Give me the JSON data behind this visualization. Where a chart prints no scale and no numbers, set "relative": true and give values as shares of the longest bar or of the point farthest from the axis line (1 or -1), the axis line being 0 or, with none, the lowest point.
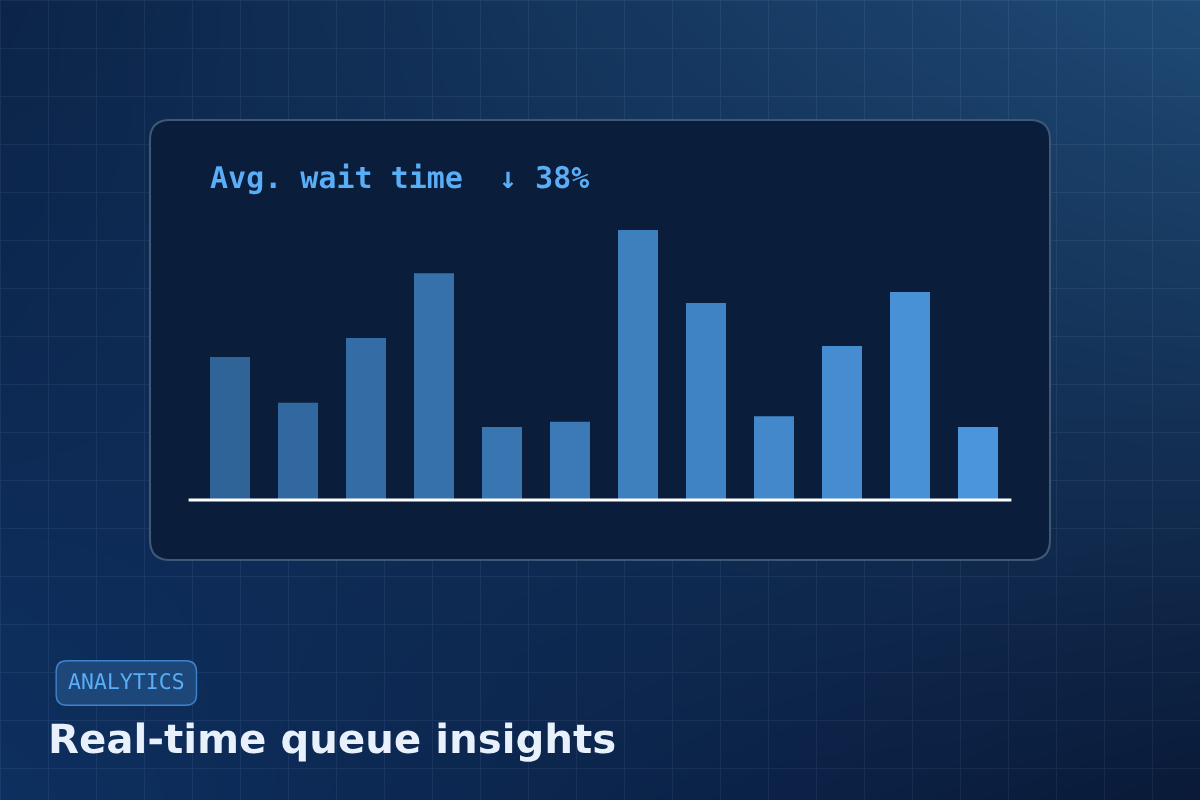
{
  "chart_data": {
    "type": "bar",
    "title": "Real-time queue insights",
    "subtitle": "Avg. wait time  ↓ 38%",
    "annotations": [
      "ANALYTICS"
    ],
    "categories": [
      null,
      null,
      null,
      null,
      null,
      null,
      null,
      null,
      null,
      null,
      null,
      null
    ],
    "values": [
      0.53,
      0.36,
      0.6,
      0.84,
      0.27,
      0.29,
      1,
      0.73,
      0.31,
      0.57,
      0.77,
      0.27
    ],
    "colors": [
      "#2f6499",
      "#31689f",
      "#346da5",
      "#3671ab",
      "#3976b1",
      "#3b7ab7",
      "#3e7fbe",
      "#4083c4",
      "#4388ca",
      "#458cd0",
      "#4891d6",
      "#4a95dc"
    ],
    "relative": true
  }
}
